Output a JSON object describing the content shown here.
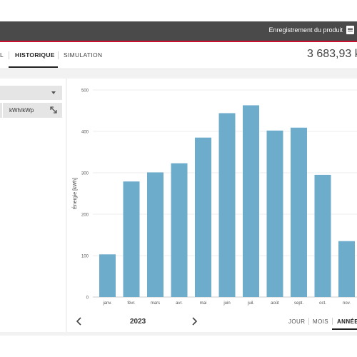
{
  "header": {
    "register_label": "Enregistrement du produit",
    "register_icon": "register-product-icon"
  },
  "tabs": [
    {
      "label": "L",
      "active": false
    },
    {
      "label": "HISTORIQUE",
      "active": true
    },
    {
      "label": "SIMULATION",
      "active": false
    }
  ],
  "total": {
    "value": "3 683,93 k"
  },
  "left_panel": {
    "select_value": "",
    "unit_label": "kWh/kWp",
    "expand_icon": "expand-icon"
  },
  "footer": {
    "year": "2023",
    "periods": [
      {
        "label": "JOUR",
        "active": false
      },
      {
        "label": "MOIS",
        "active": false
      },
      {
        "label": "ANNÉE",
        "active": true
      }
    ]
  },
  "colors": {
    "bar": "#6eaccc",
    "header": "#4a4a4a",
    "accent": "#c8102e"
  },
  "chart_data": {
    "type": "bar",
    "ylabel": "Énergie [kWh]",
    "ylim": [
      0,
      500
    ],
    "yticks": [
      0,
      100,
      200,
      300,
      400,
      500
    ],
    "grid": true,
    "categories": [
      "janv.",
      "févr.",
      "mars",
      "avr.",
      "mai",
      "juin",
      "juil.",
      "août",
      "sept.",
      "oct.",
      "nov."
    ],
    "values": [
      103,
      279,
      301,
      323,
      385,
      444,
      463,
      402,
      409,
      295,
      135
    ]
  }
}
